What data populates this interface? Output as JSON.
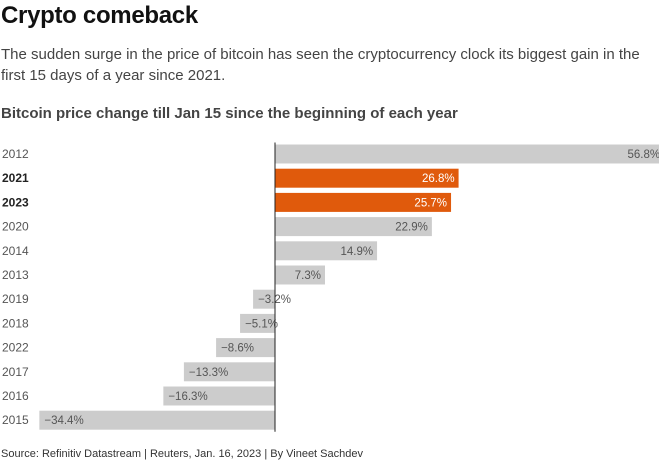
{
  "header": {
    "title": "Crypto comeback",
    "subtitle": "The sudden surge in the price of bitcoin has seen the cryptocurrency clock its biggest gain in the first 15 days of a year since 2021.",
    "chart_title": "Bitcoin price change till Jan 15 since the beginning of each year"
  },
  "footer": {
    "source": "Source: Refinitiv Datastream | Reuters, Jan. 16, 2023 | By Vineet Sachdev"
  },
  "colors": {
    "highlight": "#e05a0c",
    "bar": "#cccccc",
    "axis": "#222222"
  },
  "chart_data": {
    "type": "bar",
    "orientation": "horizontal",
    "title": "Bitcoin price change till Jan 15 since the beginning of each year",
    "xlabel": "",
    "ylabel": "",
    "xlim": [
      -34.4,
      56.8
    ],
    "grid": false,
    "categories": [
      "2012",
      "2021",
      "2023",
      "2020",
      "2014",
      "2013",
      "2019",
      "2018",
      "2022",
      "2017",
      "2016",
      "2015"
    ],
    "values": [
      56.8,
      26.8,
      25.7,
      22.9,
      14.9,
      7.3,
      -3.2,
      -5.1,
      -8.6,
      -13.3,
      -16.3,
      -34.4
    ],
    "labels": [
      "56.8%",
      "26.8%",
      "25.7%",
      "22.9%",
      "14.9%",
      "7.3%",
      "−3.2%",
      "−5.1%",
      "−8.6%",
      "−13.3%",
      "−16.3%",
      "−34.4%"
    ],
    "highlighted": [
      "2021",
      "2023"
    ]
  }
}
